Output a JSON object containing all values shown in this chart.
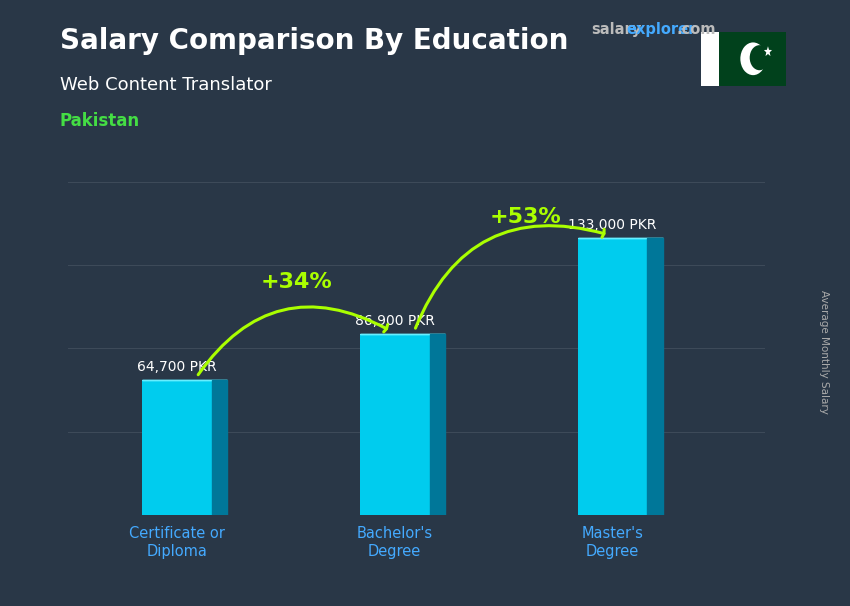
{
  "title_line1": "Salary Comparison By Education",
  "subtitle": "Web Content Translator",
  "country": "Pakistan",
  "ylabel": "Average Monthly Salary",
  "categories": [
    "Certificate or\nDiploma",
    "Bachelor's\nDegree",
    "Master's\nDegree"
  ],
  "values": [
    64700,
    86900,
    133000
  ],
  "value_labels": [
    "64,700 PKR",
    "86,900 PKR",
    "133,000 PKR"
  ],
  "pct_labels": [
    "+34%",
    "+53%"
  ],
  "bar_face_color": "#00ccee",
  "bar_top_color": "#66eeff",
  "bar_side_color": "#007799",
  "bg_color": "#3a4a5a",
  "bg_overlay": "#1a2535",
  "title_color": "#ffffff",
  "subtitle_color": "#ffffff",
  "country_color": "#44dd44",
  "value_color": "#ffffff",
  "pct_color": "#aaff00",
  "arrow_color": "#aaff00",
  "xlabel_color": "#44aaff",
  "watermark_gray": "#bbbbbb",
  "watermark_blue": "#44aaff",
  "side_label_color": "#aaaaaa",
  "ylim": [
    0,
    160000
  ],
  "bar_width": 0.32,
  "bar_positions": [
    1,
    2,
    3
  ],
  "xlim": [
    0.5,
    3.7
  ]
}
